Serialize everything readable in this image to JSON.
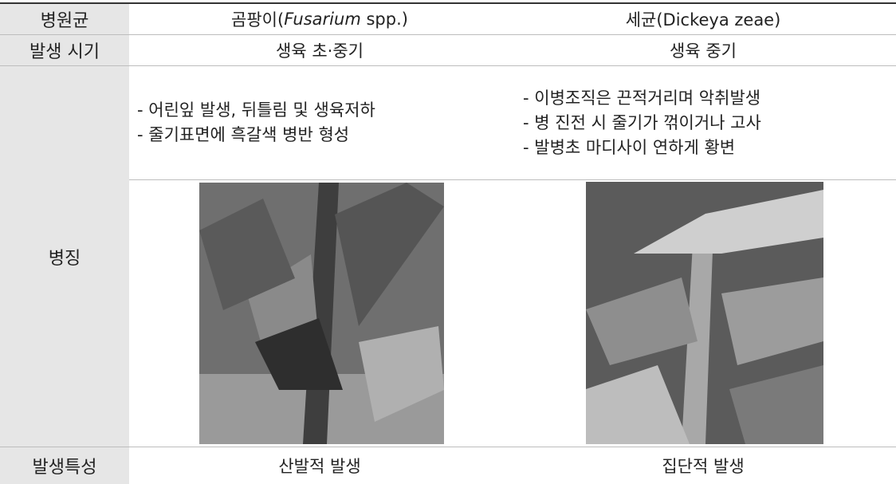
{
  "table": {
    "rows": [
      {
        "label": "병원균",
        "cells": [
          [
            "곰팡이(",
            "Fusarium",
            " spp.)"
          ],
          [
            "세균(Dickeya zeae)"
          ]
        ]
      },
      {
        "label": "발생 시기",
        "cells": [
          [
            "생육 초·중기"
          ],
          [
            "생육 중기"
          ]
        ]
      },
      {
        "label": "병징",
        "cells": [
          [
            "- 어린잎 발생, 뒤틀림 및 생육저하",
            "- 줄기표면에 흑갈색 병반 형성"
          ],
          [
            "- 이병조직은 끈적거리며 악취발생",
            "- 병 진전 시 줄기가 꺾이거나 고사",
            "- 발병초 마디사이 연하게 황변"
          ]
        ]
      },
      {
        "label": "발생특성",
        "cells": [
          [
            "산발적 발생"
          ],
          [
            "집단적 발생"
          ]
        ]
      }
    ]
  }
}
